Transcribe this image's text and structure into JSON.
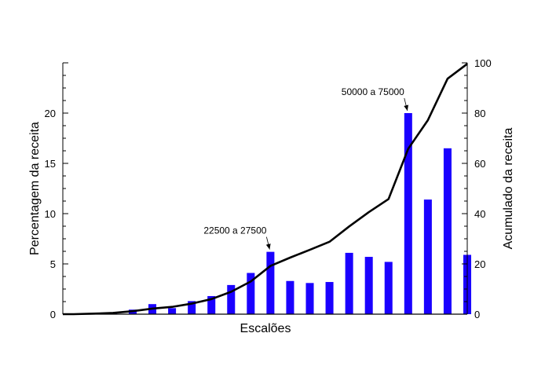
{
  "chart_data": {
    "type": "bar",
    "xlabel": "Escalões",
    "ylabel_left": "Percentagem da receita",
    "ylabel_right": "Acumulado da receita",
    "ylim_left": [
      0,
      25
    ],
    "ylim_right": [
      0,
      100
    ],
    "yticks_left": [
      0,
      5,
      10,
      15,
      20
    ],
    "yticks_right": [
      0,
      20,
      40,
      60,
      80,
      100
    ],
    "grid": false,
    "bar_color": "#1a00ff",
    "line_color": "#000000",
    "bars": {
      "axis": "left",
      "values": [
        0.05,
        0.1,
        0.15,
        0.45,
        1.0,
        0.6,
        1.3,
        1.8,
        2.9,
        4.1,
        6.2,
        3.3,
        3.1,
        3.2,
        6.1,
        5.7,
        5.2,
        20.0,
        11.4,
        16.5,
        5.9
      ]
    },
    "line": {
      "axis": "right",
      "values": [
        0,
        0.2,
        0.5,
        1.2,
        2.2,
        2.9,
        4.2,
        6.0,
        8.9,
        13.0,
        19.2,
        22.5,
        25.6,
        28.8,
        34.9,
        40.6,
        45.8,
        65.8,
        77.2,
        93.7,
        99.6
      ]
    },
    "annotations": [
      {
        "text": "22500 a 27500",
        "bar_index": 10
      },
      {
        "text": "50000 a 75000",
        "bar_index": 17
      }
    ]
  }
}
